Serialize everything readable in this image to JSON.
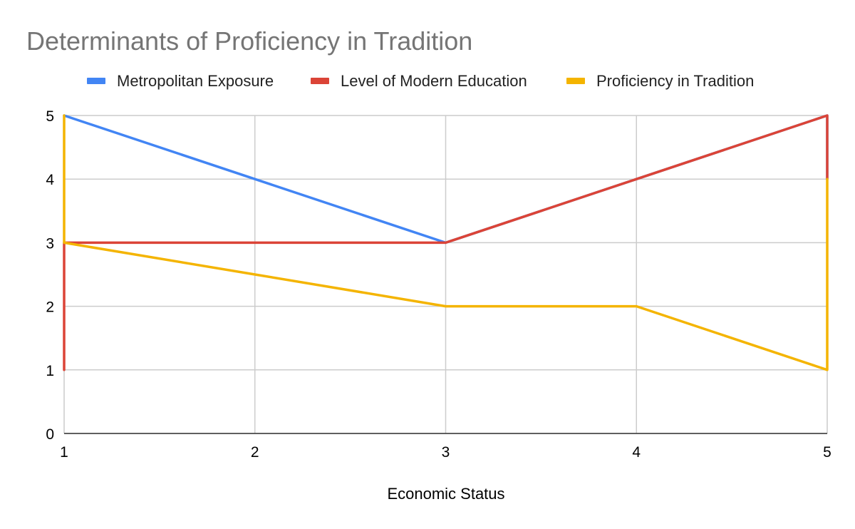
{
  "chart_data": {
    "type": "line",
    "title": "Determinants of Proficiency in Tradition",
    "xlabel": "Economic Status",
    "ylabel": "",
    "xlim": [
      1,
      5
    ],
    "ylim": [
      0,
      5
    ],
    "x_ticks": [
      "1",
      "2",
      "3",
      "4",
      "5"
    ],
    "y_ticks": [
      "0",
      "1",
      "2",
      "3",
      "4",
      "5"
    ],
    "grid": true,
    "legend_position": "top",
    "series": [
      {
        "name": "Metropolitan Exposure",
        "color": "#4285f4",
        "points": [
          [
            1,
            5
          ],
          [
            2,
            4
          ],
          [
            3,
            3
          ],
          [
            4,
            4
          ],
          [
            5,
            5
          ],
          [
            5,
            4
          ]
        ]
      },
      {
        "name": "Level of Modern Education",
        "color": "#db4437",
        "points": [
          [
            1,
            1
          ],
          [
            1,
            3
          ],
          [
            2,
            3
          ],
          [
            3,
            3
          ],
          [
            4,
            4
          ],
          [
            5,
            5
          ],
          [
            5,
            4
          ]
        ]
      },
      {
        "name": "Proficiency in Tradition",
        "color": "#f4b400",
        "points": [
          [
            1,
            5
          ],
          [
            1,
            3
          ],
          [
            2,
            2.5
          ],
          [
            3,
            2
          ],
          [
            4,
            2
          ],
          [
            5,
            1
          ],
          [
            5,
            4
          ]
        ]
      }
    ]
  }
}
